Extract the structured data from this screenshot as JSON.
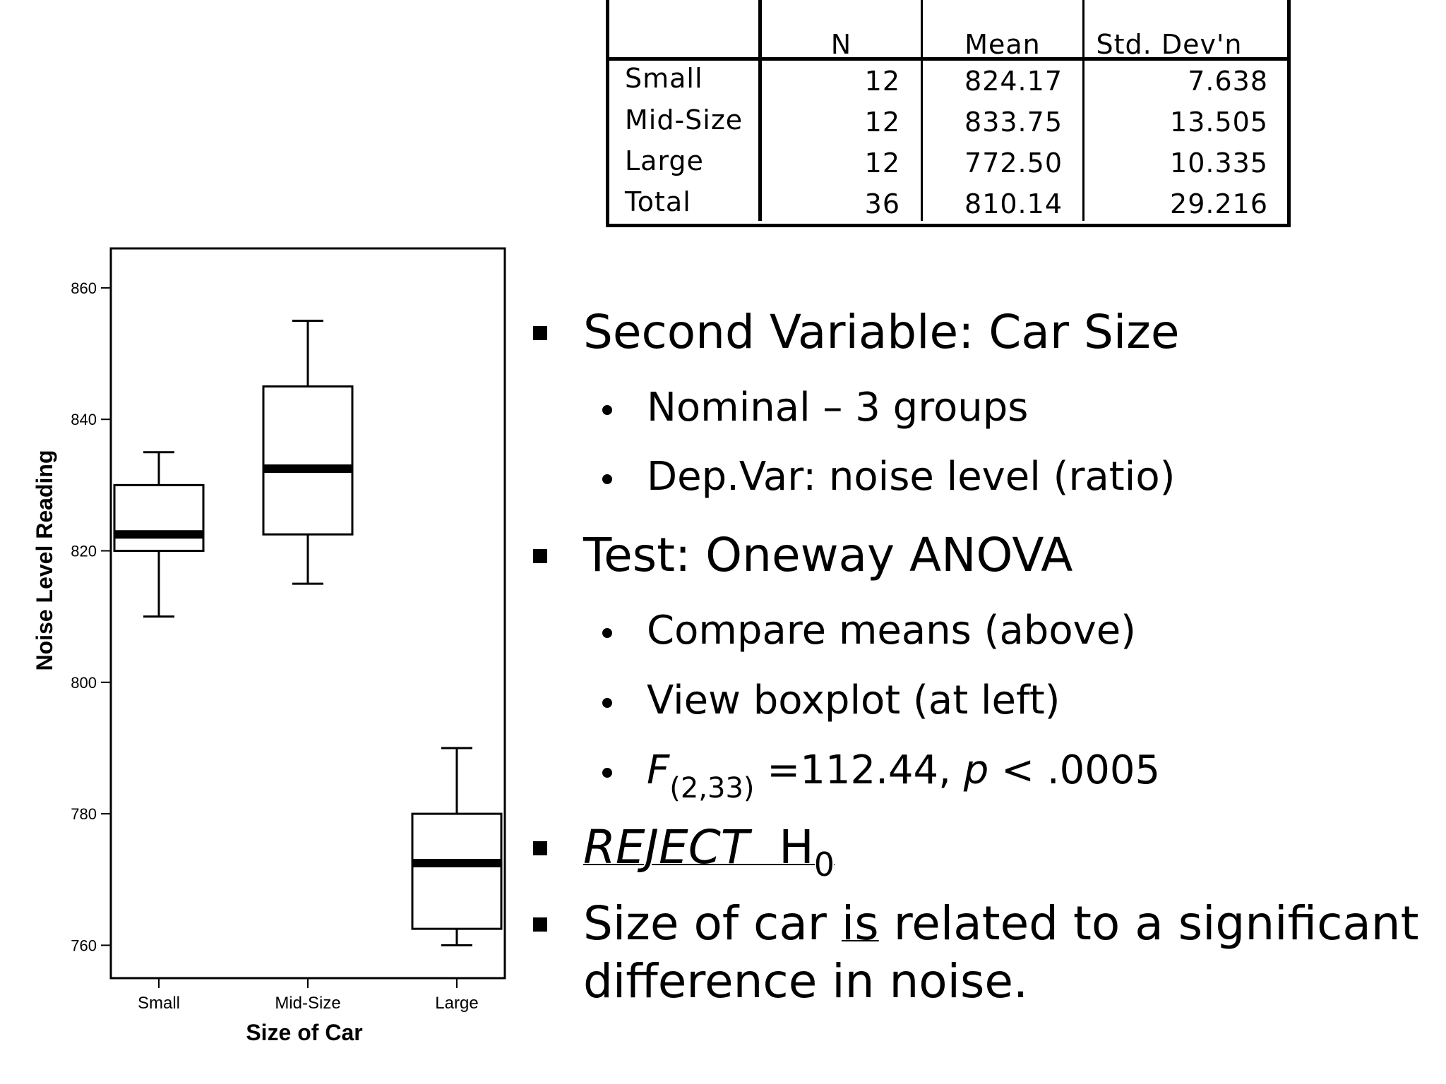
{
  "stats_table": {
    "headers": [
      "N",
      "Mean",
      "Std. Dev'n"
    ],
    "rows": [
      {
        "label": "Small",
        "n": "12",
        "mean": "824.17",
        "sd": "7.638"
      },
      {
        "label": "Mid-Size",
        "n": "12",
        "mean": "833.75",
        "sd": "13.505"
      },
      {
        "label": "Large",
        "n": "12",
        "mean": "772.50",
        "sd": "10.335"
      },
      {
        "label": "Total",
        "n": "36",
        "mean": "810.14",
        "sd": "29.216"
      }
    ]
  },
  "chart_data": {
    "type": "boxplot",
    "xlabel": "Size of Car",
    "ylabel": "Noise Level Reading",
    "ylim": [
      755,
      866
    ],
    "yticks": [
      760,
      780,
      800,
      820,
      840,
      860
    ],
    "categories": [
      "Small",
      "Mid-Size",
      "Large"
    ],
    "boxes": [
      {
        "category": "Small",
        "min": 810,
        "q1": 820,
        "median": 822.5,
        "q3": 830,
        "max": 835
      },
      {
        "category": "Mid-Size",
        "min": 815,
        "q1": 822.5,
        "median": 832.5,
        "q3": 845,
        "max": 855
      },
      {
        "category": "Large",
        "min": 760,
        "q1": 762.5,
        "median": 772.5,
        "q3": 780,
        "max": 790
      }
    ]
  },
  "bullets": {
    "b1": "Second Variable:  Car Size",
    "b1_s1": "Nominal – 3 groups",
    "b1_s2": "Dep.Var: noise level (ratio)",
    "b2": "Test:  Oneway ANOVA",
    "b2_s1": "Compare means (above)",
    "b2_s2": "View boxplot (at left)",
    "f_letter": "F",
    "f_df": "(2,33)",
    "f_value": " =112.44, ",
    "p_letter": "p",
    "p_value": " < .0005",
    "reject": "REJECT",
    "h": "H",
    "h_sub": "0",
    "conclusion_a": "Size of car ",
    "conclusion_is": "is",
    "conclusion_b": " related to a significant",
    "conclusion_line2": "difference in noise."
  }
}
